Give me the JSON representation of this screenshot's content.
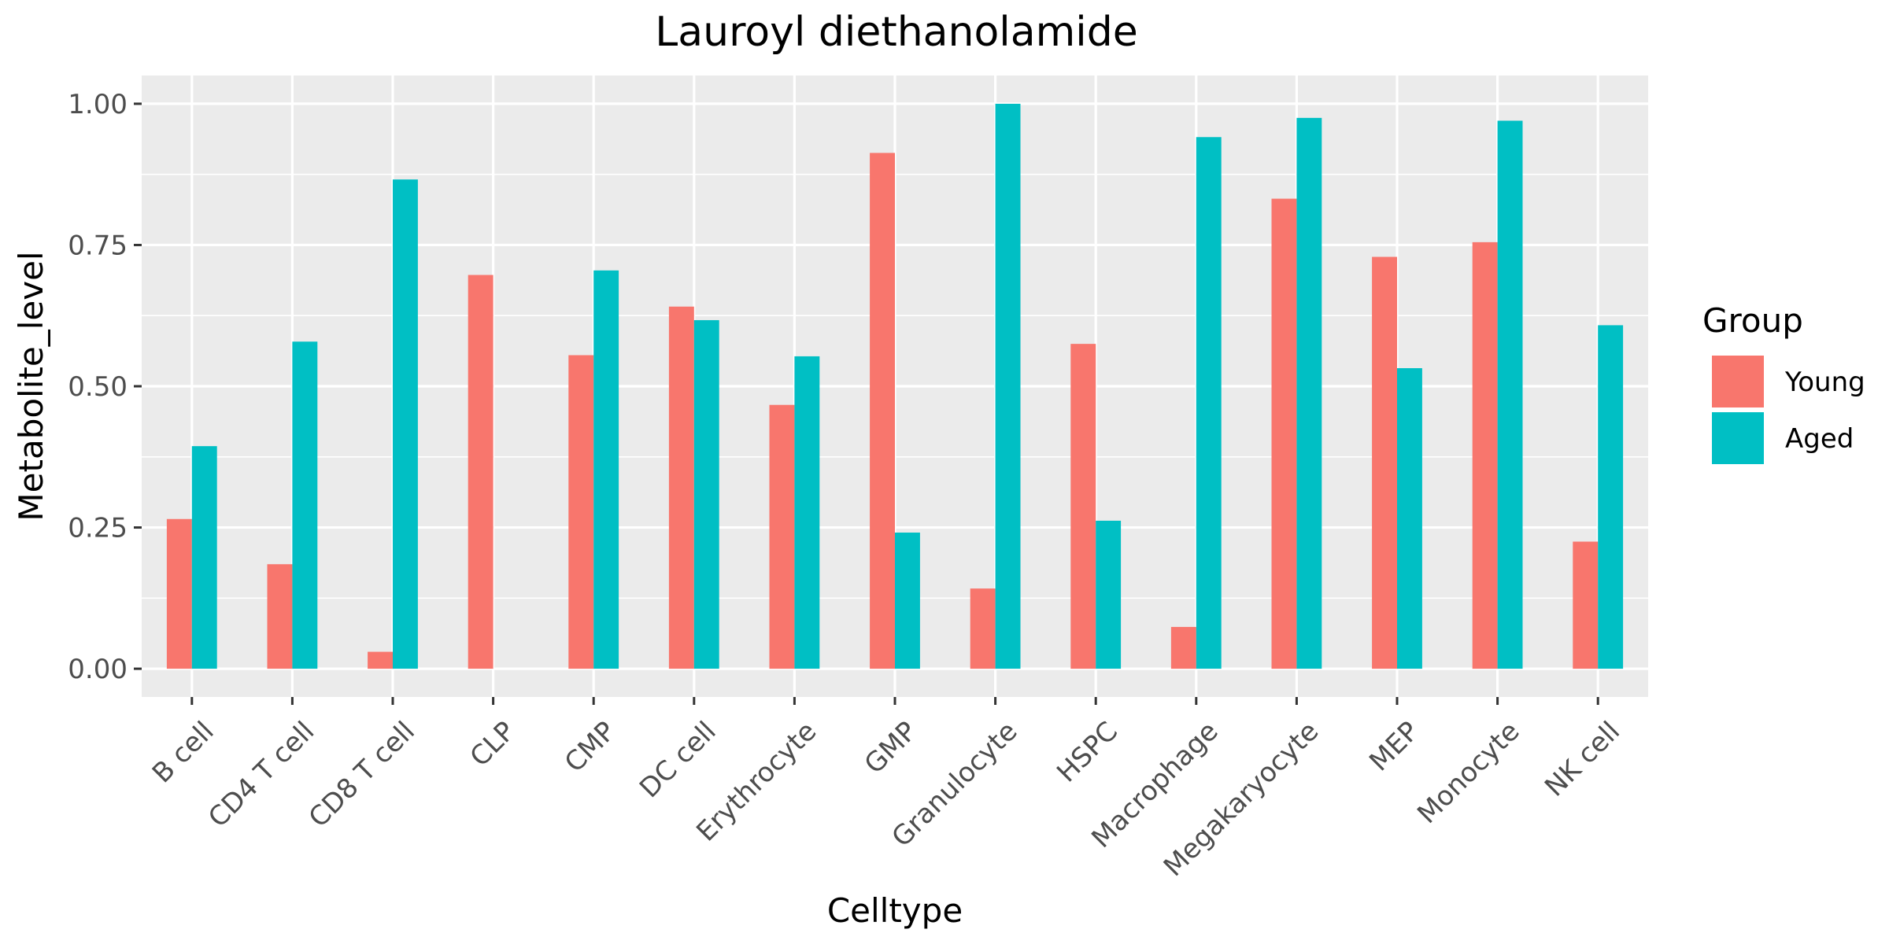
{
  "chart_data": {
    "type": "bar",
    "title": "Lauroyl diethanolamide",
    "xlabel": "Celltype",
    "ylabel": "Metabolite_level",
    "ylim": [
      -0.05,
      1.05
    ],
    "yticks": [
      "0.00",
      "0.25",
      "0.50",
      "0.75",
      "1.00"
    ],
    "grid": true,
    "legend_position": "right",
    "legend_title": "Group",
    "categories": [
      "B cell",
      "CD4 T cell",
      "CD8 T cell",
      "CLP",
      "CMP",
      "DC cell",
      "Erythrocyte",
      "GMP",
      "Granulocyte",
      "HSPC",
      "Macrophage",
      "Megakaryocyte",
      "MEP",
      "Monocyte",
      "NK cell"
    ],
    "series": [
      {
        "name": "Young",
        "color": "#F8766D",
        "values": [
          0.265,
          0.185,
          0.03,
          0.697,
          0.555,
          0.641,
          0.467,
          0.913,
          0.142,
          0.575,
          0.074,
          0.832,
          0.729,
          0.755,
          0.225
        ]
      },
      {
        "name": "Aged",
        "color": "#00BFC4",
        "values": [
          0.394,
          0.579,
          0.866,
          null,
          0.705,
          0.617,
          0.553,
          0.241,
          1.0,
          0.262,
          0.941,
          0.975,
          0.532,
          0.97,
          0.608
        ]
      }
    ],
    "panel_background": "#EBEBEB",
    "grid_color": "#FFFFFF"
  }
}
